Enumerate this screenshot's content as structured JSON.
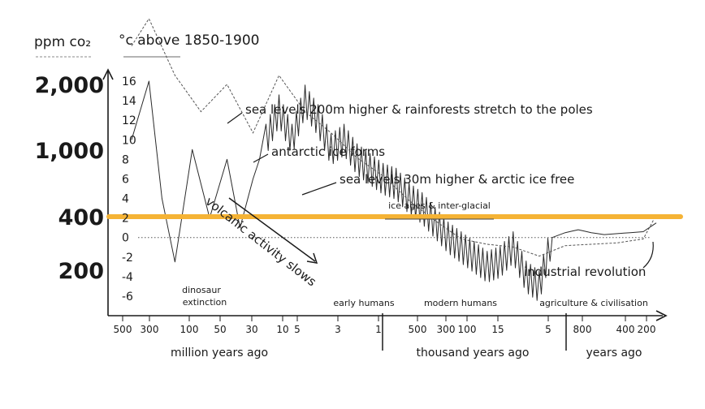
{
  "chart_data": {
    "type": "line",
    "title": "",
    "left_axis_titles": {
      "co2": "ppm co₂",
      "temperature": "°c above 1850-1900"
    },
    "co2_ticks": [
      "2,000",
      "1,000",
      "400",
      "200"
    ],
    "temperature_ticks": [
      "16",
      "14",
      "12",
      "10",
      "8",
      "6",
      "4",
      "2",
      "0",
      "-2",
      "-4",
      "-6"
    ],
    "x_ticks": {
      "million_years_ago": [
        "500",
        "300",
        "100",
        "50",
        "30",
        "10",
        "5",
        "3",
        "1"
      ],
      "thousand_years_ago": [
        "500",
        "300",
        "100",
        "15",
        "5"
      ],
      "years_ago": [
        "800",
        "400",
        "200"
      ]
    },
    "x_unit_labels": [
      "million years ago",
      "thousand years ago",
      "years ago"
    ],
    "eras": [
      "dinosaur extinction",
      "early humans",
      "modern humans",
      "agriculture & civilisation"
    ],
    "annotations": [
      "sea levels 200m higher & rainforests stretch to the poles",
      "antarctic ice forms",
      "sea levels 30m higher & arctic ice free",
      "ice ages & inter-glacial",
      "volcanic activity slows",
      "industrial revolution"
    ],
    "reference_line": {
      "co2_ppm": 400,
      "color": "#f5b335"
    },
    "grid": false,
    "series": [
      {
        "kind": "temperature",
        "style": "solid",
        "points": [
          [
            0.0,
            10
          ],
          [
            0.04,
            16
          ],
          [
            0.07,
            4
          ],
          [
            0.1,
            -2.5
          ],
          [
            0.14,
            9
          ],
          [
            0.18,
            2
          ],
          [
            0.22,
            8
          ],
          [
            0.25,
            1
          ],
          [
            0.28,
            6
          ],
          [
            0.31,
            10
          ],
          [
            0.34,
            13
          ],
          [
            0.37,
            10
          ],
          [
            0.4,
            14
          ],
          [
            0.43,
            12
          ],
          [
            0.46,
            9
          ],
          [
            0.49,
            10
          ],
          [
            0.52,
            8
          ],
          [
            0.55,
            7
          ],
          [
            0.58,
            6
          ],
          [
            0.61,
            5.5
          ],
          [
            0.64,
            4
          ],
          [
            0.67,
            3
          ],
          [
            0.7,
            1.5
          ],
          [
            0.73,
            0
          ],
          [
            0.76,
            -1
          ],
          [
            0.79,
            -2
          ],
          [
            0.82,
            -3
          ],
          [
            0.85,
            -2.5
          ],
          [
            0.88,
            -1
          ],
          [
            0.91,
            -4
          ],
          [
            0.94,
            -5
          ],
          [
            0.97,
            0
          ],
          [
            1.0,
            0.5
          ],
          [
            1.03,
            0.8
          ],
          [
            1.06,
            0.5
          ],
          [
            1.09,
            0.3
          ],
          [
            1.12,
            0.4
          ],
          [
            1.15,
            0.5
          ],
          [
            1.18,
            0.6
          ],
          [
            1.21,
            1.5
          ]
        ]
      },
      {
        "kind": "co2",
        "style": "dashed",
        "points": [
          [
            0.0,
            3000
          ],
          [
            0.04,
            4000
          ],
          [
            0.1,
            2200
          ],
          [
            0.16,
            1500
          ],
          [
            0.22,
            2000
          ],
          [
            0.28,
            1200
          ],
          [
            0.34,
            2200
          ],
          [
            0.4,
            1500
          ],
          [
            0.46,
            1200
          ],
          [
            0.52,
            900
          ],
          [
            0.58,
            700
          ],
          [
            0.64,
            500
          ],
          [
            0.7,
            380
          ],
          [
            0.76,
            300
          ],
          [
            0.82,
            280
          ],
          [
            0.88,
            270
          ],
          [
            0.94,
            240
          ],
          [
            1.0,
            275
          ],
          [
            1.06,
            280
          ],
          [
            1.12,
            285
          ],
          [
            1.18,
            300
          ],
          [
            1.21,
            410
          ]
        ]
      }
    ]
  }
}
